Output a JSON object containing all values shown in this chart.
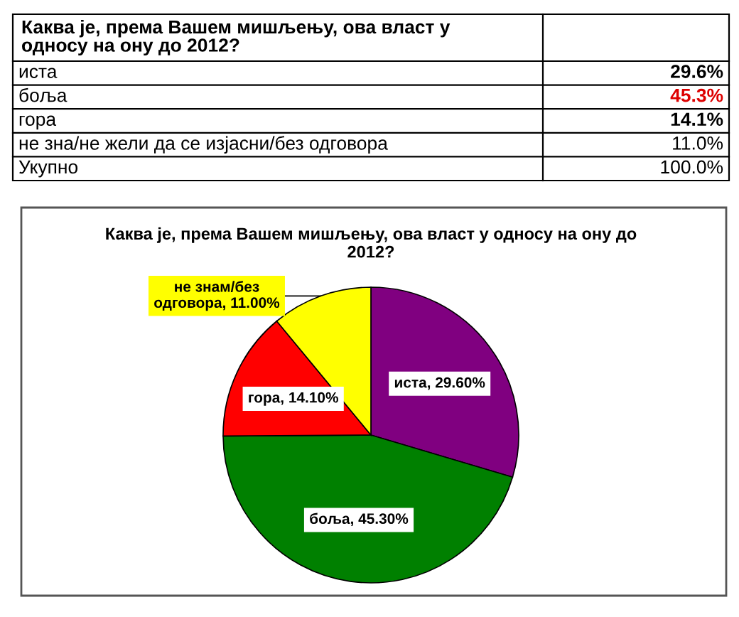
{
  "chart_data": [
    {
      "type": "other",
      "title": "Каква је, према Вашем мишљењу, ова власт у односу на ону до 2012?",
      "categories": [
        "иста",
        "боља",
        "гора",
        "не зна/не жели да се изјасни/без одговора",
        "Укупно"
      ],
      "value_labels": [
        "29.6%",
        "45.3%",
        "14.1%",
        "11.0%",
        "100.0%"
      ],
      "colors": [
        "#000000",
        "#dd0000",
        "#000000",
        "#000000",
        "#000000"
      ]
    },
    {
      "type": "pie",
      "title": "Каква је, према Вашем мишљењу, ова власт у односу на ону до 2012?",
      "categories": [
        null,
        null,
        null,
        null
      ],
      "values": [
        29.6,
        45.3,
        14.1,
        11.0
      ],
      "colors": [
        "#800080",
        "#008000",
        "#ff0000",
        "#ffff00"
      ],
      "value_labels": [
        "иста, 29.60%",
        "боља, 45.30%",
        "гора, 14.10%",
        "не знам/без одговора, 11.00%"
      ]
    }
  ]
}
